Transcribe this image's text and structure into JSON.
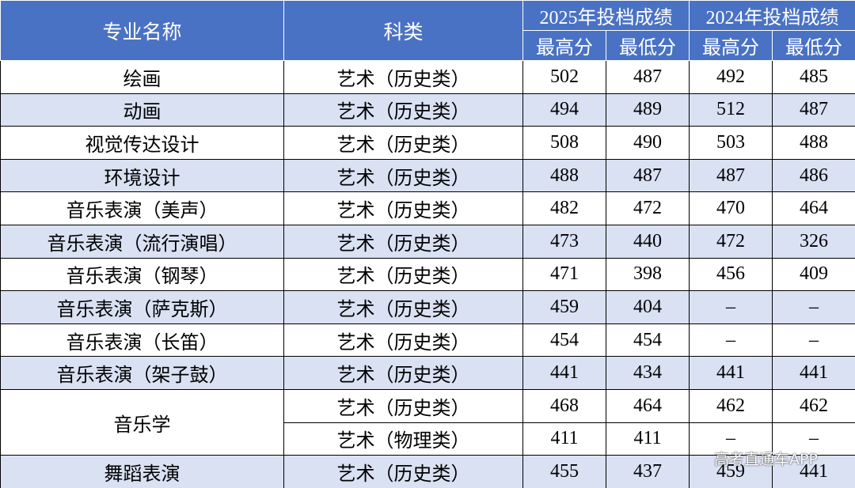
{
  "header": {
    "columns": [
      "专业名称",
      "科类"
    ],
    "years": [
      "2025年投档成绩",
      "2024年投档成绩"
    ],
    "subcolumns": [
      "最高分",
      "最低分",
      "最高分",
      "最低分"
    ]
  },
  "table": {
    "groups": [
      {
        "major": "绘画",
        "entries": [
          {
            "category": "艺术（历史类）",
            "scores": [
              502,
              487,
              492,
              485
            ]
          }
        ]
      },
      {
        "major": "动画",
        "entries": [
          {
            "category": "艺术（历史类）",
            "scores": [
              494,
              489,
              512,
              487
            ]
          }
        ]
      },
      {
        "major": "视觉传达设计",
        "entries": [
          {
            "category": "艺术（历史类）",
            "scores": [
              508,
              490,
              503,
              488
            ]
          }
        ]
      },
      {
        "major": "环境设计",
        "entries": [
          {
            "category": "艺术（历史类）",
            "scores": [
              488,
              487,
              487,
              486
            ]
          }
        ]
      },
      {
        "major": "音乐表演（美声）",
        "entries": [
          {
            "category": "艺术（历史类）",
            "scores": [
              482,
              472,
              470,
              464
            ]
          }
        ]
      },
      {
        "major": "音乐表演（流行演唱）",
        "entries": [
          {
            "category": "艺术（历史类）",
            "scores": [
              473,
              440,
              472,
              326
            ]
          }
        ]
      },
      {
        "major": "音乐表演（钢琴）",
        "entries": [
          {
            "category": "艺术（历史类）",
            "scores": [
              471,
              398,
              456,
              409
            ]
          }
        ]
      },
      {
        "major": "音乐表演（萨克斯）",
        "entries": [
          {
            "category": "艺术（历史类）",
            "scores": [
              459,
              404,
              "–",
              "–"
            ]
          }
        ]
      },
      {
        "major": "音乐表演（长笛）",
        "entries": [
          {
            "category": "艺术（历史类）",
            "scores": [
              454,
              454,
              "–",
              "–"
            ]
          }
        ]
      },
      {
        "major": "音乐表演（架子鼓）",
        "entries": [
          {
            "category": "艺术（历史类）",
            "scores": [
              441,
              434,
              441,
              441
            ]
          }
        ]
      },
      {
        "major": "音乐学",
        "entries": [
          {
            "category": "艺术（历史类）",
            "scores": [
              468,
              464,
              462,
              462
            ]
          },
          {
            "category": "艺术（物理类）",
            "scores": [
              411,
              411,
              "–",
              "–"
            ]
          }
        ]
      },
      {
        "major": "舞蹈表演",
        "entries": [
          {
            "category": "艺术（历史类）",
            "scores": [
              455,
              437,
              459,
              441
            ]
          }
        ]
      }
    ]
  },
  "watermark": "高考直通车APP"
}
